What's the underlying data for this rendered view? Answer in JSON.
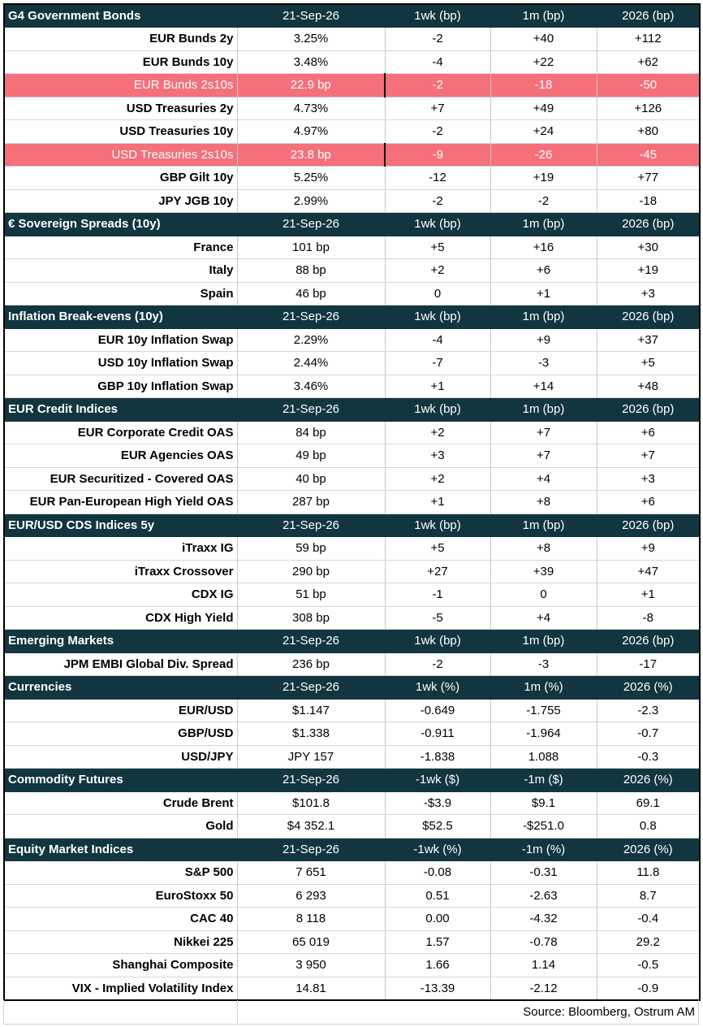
{
  "sections": [
    {
      "title": "G4 Government Bonds",
      "headers": [
        "21-Sep-26",
        "1wk (bp)",
        "1m (bp)",
        "2026 (bp)"
      ],
      "rows": [
        {
          "label": "EUR Bunds 2y",
          "values": [
            "3.25%",
            "-2",
            "+40",
            "+112"
          ],
          "highlight": false
        },
        {
          "label": "EUR Bunds 10y",
          "values": [
            "3.48%",
            "-4",
            "+22",
            "+62"
          ],
          "highlight": false
        },
        {
          "label": "EUR Bunds 2s10s",
          "values": [
            "22.9 bp",
            "-2",
            "-18",
            "-50"
          ],
          "highlight": true
        },
        {
          "label": "USD Treasuries 2y",
          "values": [
            "4.73%",
            "+7",
            "+49",
            "+126"
          ],
          "highlight": false
        },
        {
          "label": "USD Treasuries 10y",
          "values": [
            "4.97%",
            "-2",
            "+24",
            "+80"
          ],
          "highlight": false
        },
        {
          "label": "USD Treasuries 2s10s",
          "values": [
            "23.8 bp",
            "-9",
            "-26",
            "-45"
          ],
          "highlight": true
        },
        {
          "label": "GBP Gilt 10y",
          "values": [
            "5.25%",
            "-12",
            "+19",
            "+77"
          ],
          "highlight": false
        },
        {
          "label": "JPY JGB 10y",
          "values": [
            "2.99%",
            "-2",
            "-2",
            "-18"
          ],
          "highlight": false
        }
      ]
    },
    {
      "title": "€ Sovereign Spreads (10y)",
      "headers": [
        "21-Sep-26",
        "1wk (bp)",
        "1m (bp)",
        "2026 (bp)"
      ],
      "rows": [
        {
          "label": "France",
          "values": [
            "101 bp",
            "+5",
            "+16",
            "+30"
          ],
          "highlight": false
        },
        {
          "label": "Italy",
          "values": [
            "88 bp",
            "+2",
            "+6",
            "+19"
          ],
          "highlight": false
        },
        {
          "label": "Spain",
          "values": [
            "46 bp",
            "0",
            "+1",
            "+3"
          ],
          "highlight": false
        }
      ]
    },
    {
      "title": "Inflation Break-evens (10y)",
      "headers": [
        "21-Sep-26",
        "1wk (bp)",
        "1m (bp)",
        "2026 (bp)"
      ],
      "rows": [
        {
          "label": "EUR 10y Inflation Swap",
          "values": [
            "2.29%",
            "-4",
            "+9",
            "+37"
          ],
          "highlight": false
        },
        {
          "label": "USD 10y Inflation Swap",
          "values": [
            "2.44%",
            "-7",
            "-3",
            "+5"
          ],
          "highlight": false
        },
        {
          "label": "GBP 10y Inflation Swap",
          "values": [
            "3.46%",
            "+1",
            "+14",
            "+48"
          ],
          "highlight": false
        }
      ]
    },
    {
      "title": "EUR Credit Indices",
      "headers": [
        "21-Sep-26",
        "1wk (bp)",
        "1m (bp)",
        "2026 (bp)"
      ],
      "rows": [
        {
          "label": "EUR Corporate Credit OAS",
          "values": [
            "84 bp",
            "+2",
            "+7",
            "+6"
          ],
          "highlight": false
        },
        {
          "label": "EUR Agencies OAS",
          "values": [
            "49 bp",
            "+3",
            "+7",
            "+7"
          ],
          "highlight": false
        },
        {
          "label": "EUR Securitized - Covered OAS",
          "values": [
            "40 bp",
            "+2",
            "+4",
            "+3"
          ],
          "highlight": false
        },
        {
          "label": "EUR Pan-European High Yield OAS",
          "values": [
            "287 bp",
            "+1",
            "+8",
            "+6"
          ],
          "highlight": false
        }
      ]
    },
    {
      "title": "EUR/USD CDS Indices 5y",
      "headers": [
        "21-Sep-26",
        "1wk (bp)",
        "1m (bp)",
        "2026 (bp)"
      ],
      "rows": [
        {
          "label": "iTraxx IG",
          "values": [
            "59 bp",
            "+5",
            "+8",
            "+9"
          ],
          "highlight": false
        },
        {
          "label": "iTraxx Crossover",
          "values": [
            "290 bp",
            "+27",
            "+39",
            "+47"
          ],
          "highlight": false
        },
        {
          "label": "CDX IG",
          "values": [
            "51 bp",
            "-1",
            "0",
            "+1"
          ],
          "highlight": false
        },
        {
          "label": "CDX High Yield",
          "values": [
            "308 bp",
            "-5",
            "+4",
            "-8"
          ],
          "highlight": false
        }
      ]
    },
    {
      "title": "Emerging Markets",
      "headers": [
        "21-Sep-26",
        "1wk (bp)",
        "1m (bp)",
        "2026 (bp)"
      ],
      "rows": [
        {
          "label": "JPM EMBI Global Div. Spread",
          "values": [
            "236 bp",
            "-2",
            "-3",
            "-17"
          ],
          "highlight": false
        }
      ]
    },
    {
      "title": "Currencies",
      "headers": [
        "21-Sep-26",
        "1wk (%)",
        "1m (%)",
        "2026 (%)"
      ],
      "rows": [
        {
          "label": "EUR/USD",
          "values": [
            "$1.147",
            "-0.649",
            "-1.755",
            "-2.3"
          ],
          "highlight": false
        },
        {
          "label": "GBP/USD",
          "values": [
            "$1.338",
            "-0.911",
            "-1.964",
            "-0.7"
          ],
          "highlight": false
        },
        {
          "label": "USD/JPY",
          "values": [
            "JPY 157",
            "-1.838",
            "1.088",
            "-0.3"
          ],
          "highlight": false
        }
      ]
    },
    {
      "title": "Commodity Futures",
      "headers": [
        "21-Sep-26",
        "-1wk ($)",
        "-1m ($)",
        "2026 (%)"
      ],
      "rows": [
        {
          "label": "Crude Brent",
          "values": [
            "$101.8",
            "-$3.9",
            "$9.1",
            "69.1"
          ],
          "highlight": false
        },
        {
          "label": "Gold",
          "values": [
            "$4 352.1",
            "$52.5",
            "-$251.0",
            "0.8"
          ],
          "highlight": false
        }
      ]
    },
    {
      "title": "Equity Market Indices",
      "headers": [
        "21-Sep-26",
        "-1wk (%)",
        "-1m (%)",
        "2026 (%)"
      ],
      "rows": [
        {
          "label": "S&P 500",
          "values": [
            "7 651",
            "-0.08",
            "-0.31",
            "11.8"
          ],
          "highlight": false
        },
        {
          "label": "EuroStoxx 50",
          "values": [
            "6 293",
            "0.51",
            "-2.63",
            "8.7"
          ],
          "highlight": false
        },
        {
          "label": "CAC 40",
          "values": [
            "8 118",
            "0.00",
            "-4.32",
            "-0.4"
          ],
          "highlight": false
        },
        {
          "label": "Nikkei 225",
          "values": [
            "65 019",
            "1.57",
            "-0.78",
            "29.2"
          ],
          "highlight": false
        },
        {
          "label": "Shanghai Composite",
          "values": [
            "3 950",
            "1.66",
            "1.14",
            "-0.5"
          ],
          "highlight": false
        },
        {
          "label": "VIX - Implied Volatility Index",
          "values": [
            "14.81",
            "-13.39",
            "-2.12",
            "-0.9"
          ],
          "highlight": false
        }
      ]
    }
  ],
  "source": "Source: Bloomberg, Ostrum AM",
  "colors": {
    "header_background": "#12363f",
    "highlight_background": "#f4707a",
    "header_text": "#ffffff"
  }
}
